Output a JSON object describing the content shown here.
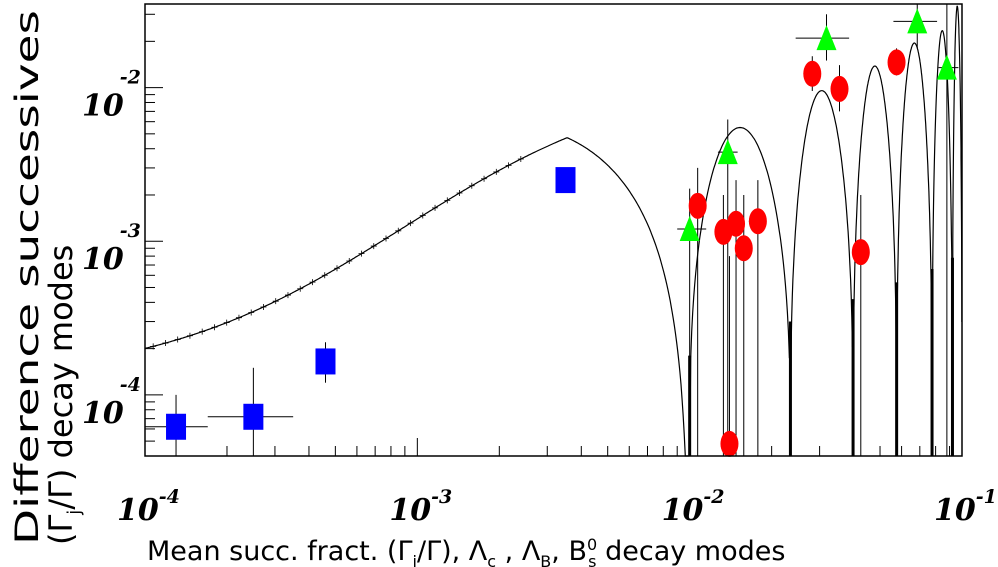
{
  "chart_data": {
    "type": "scatter",
    "xlabel": "Mean succ. fract. (Γi/Γ), Λc , ΛB, B0s decay modes",
    "xlabel_parts": {
      "prefix": "Mean succ. fract. (Γ",
      "sub_i": "i",
      "middle": "/Γ),  Λ",
      "sub_c": "c",
      "sep1": " , Λ",
      "sub_b": "B",
      "sep2": ", B",
      "sup_0": "0",
      "sub_s": "s",
      "suffix": " decay modes"
    },
    "ylabel_line1": "Difference successives",
    "ylabel_line2_parts": {
      "prefix": "(Γ",
      "sub_j": "j",
      "suffix": "/Γ) decay modes"
    },
    "x_scale": "log",
    "y_scale": "log",
    "xlim": [
      0.0001,
      0.1
    ],
    "ylim": [
      4e-05,
      0.035
    ],
    "x_ticks": [
      {
        "base": "10",
        "exp": "-4",
        "value": 0.0001
      },
      {
        "base": "10",
        "exp": "-3",
        "value": 0.001
      },
      {
        "base": "10",
        "exp": "-2",
        "value": 0.01
      },
      {
        "base": "10",
        "exp": "-1",
        "value": 0.1
      }
    ],
    "y_ticks": [
      {
        "base": "10",
        "exp": "-4",
        "value": 0.0001
      },
      {
        "base": "10",
        "exp": "-3",
        "value": 0.001
      },
      {
        "base": "10",
        "exp": "-2",
        "value": 0.01
      }
    ],
    "colors": {
      "blue": "#0000ff",
      "red": "#ff0000",
      "green": "#00ff00",
      "line": "#000000"
    },
    "series": [
      {
        "marker": "square",
        "color": "#0000ff",
        "points": [
          {
            "x": 0.00013,
            "y": 6.2e-05,
            "xerr": [
              0.0001,
              0.00017
            ],
            "yerr": [
              4e-05,
              0.0001
            ]
          },
          {
            "x": 0.00025,
            "y": 7.2e-05,
            "xerr": [
              0.00017,
              0.00035
            ],
            "yerr": [
              4e-05,
              0.00015
            ]
          },
          {
            "x": 0.00046,
            "y": 0.000165,
            "xerr": [
              0.00046,
              0.00046
            ],
            "yerr": [
              0.00012,
              0.00022
            ]
          },
          {
            "x": 0.0035,
            "y": 0.0025,
            "xerr": [
              0.0035,
              0.0035
            ],
            "yerr": [
              0.0022,
              0.0029
            ]
          }
        ]
      },
      {
        "marker": "circle",
        "color": "#ff0000",
        "points": [
          {
            "x": 0.0107,
            "y": 0.0017,
            "xerr": [
              0.0107,
              0.0107
            ],
            "yerr": [
              4e-05,
              0.003
            ]
          },
          {
            "x": 0.0133,
            "y": 0.00115,
            "xerr": [
              0.0133,
              0.0133
            ],
            "yerr": [
              4e-05,
              0.002
            ]
          },
          {
            "x": 0.014,
            "y": 4.8e-05,
            "xerr": [
              0.014,
              0.014
            ],
            "yerr": [
              4e-05,
              0.0008
            ]
          },
          {
            "x": 0.0148,
            "y": 0.0013,
            "xerr": [
              0.0148,
              0.0148
            ],
            "yerr": [
              4e-05,
              0.0025
            ]
          },
          {
            "x": 0.0158,
            "y": 0.0009,
            "xerr": [
              0.0158,
              0.0158
            ],
            "yerr": [
              4e-05,
              0.002
            ]
          },
          {
            "x": 0.0178,
            "y": 0.00135,
            "xerr": [
              0.0165,
              0.019
            ],
            "yerr": [
              4e-05,
              0.0025
            ]
          },
          {
            "x": 0.0282,
            "y": 0.0123,
            "xerr": [
              0.027,
              0.03
            ],
            "yerr": [
              0.0095,
              0.016
            ]
          },
          {
            "x": 0.0355,
            "y": 0.0098,
            "xerr": [
              0.0355,
              0.0355
            ],
            "yerr": [
              0.007,
              0.014
            ]
          },
          {
            "x": 0.0425,
            "y": 0.00085,
            "xerr": [
              0.0425,
              0.0425
            ],
            "yerr": [
              4e-05,
              0.002
            ]
          },
          {
            "x": 0.0575,
            "y": 0.0146,
            "xerr": [
              0.0575,
              0.0575
            ],
            "yerr": [
              0.012,
              0.018
            ]
          }
        ]
      },
      {
        "marker": "triangle",
        "color": "#00ff00",
        "points": [
          {
            "x": 0.01,
            "y": 0.0012,
            "xerr": [
              0.009,
              0.0115
            ],
            "yerr": [
              4e-05,
              0.0022
            ]
          },
          {
            "x": 0.0138,
            "y": 0.0038,
            "xerr": [
              0.0127,
              0.015
            ],
            "yerr": [
              4e-05,
              0.0062
            ]
          },
          {
            "x": 0.0318,
            "y": 0.021,
            "xerr": [
              0.0245,
              0.0385
            ],
            "yerr": [
              0.015,
              0.03
            ]
          },
          {
            "x": 0.0685,
            "y": 0.027,
            "xerr": [
              0.056,
              0.081
            ],
            "yerr": [
              0.018,
              0.035
            ]
          },
          {
            "x": 0.088,
            "y": 0.0135,
            "xerr": [
              0.082,
              0.097
            ],
            "yerr": [
              4e-05,
              0.035
            ]
          }
        ]
      }
    ]
  }
}
